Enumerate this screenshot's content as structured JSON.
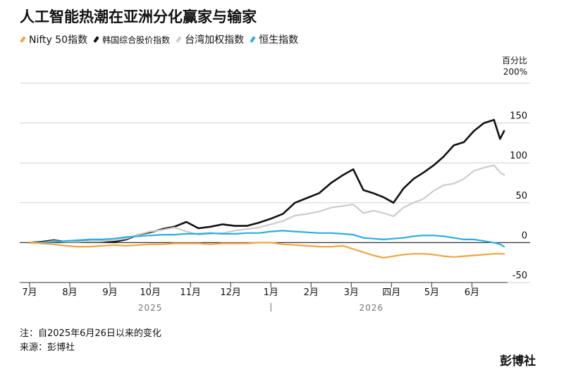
{
  "title": "人工智能热潮在亚洲分化赢家与输家",
  "legend": [
    {
      "label": "Nifty 50指数",
      "color": "#f0a540"
    },
    {
      "label": "韩国综合股价指数",
      "color": "#111111"
    },
    {
      "label": "台湾加权指数",
      "color": "#cccccc"
    },
    {
      "label": "恒生指数",
      "color": "#29aee0"
    }
  ],
  "unit_label": "百分比",
  "unit_top_tick": "200%",
  "footnote": "注：自2025年6月26日以来的变化",
  "source": "来源：彭博社",
  "brand": "彭博社",
  "chart_data": {
    "type": "line",
    "title": "人工智能热潮在亚洲分化赢家与输家",
    "ylabel": "百分比",
    "ylim": [
      -50,
      200
    ],
    "yticks": [
      150,
      100,
      50,
      0,
      -50
    ],
    "ytick_labels": [
      "150",
      "100",
      "50",
      "0",
      "-50"
    ],
    "x_tick_labels": [
      "7月",
      "8月",
      "9月",
      "10月",
      "11月",
      "12月",
      "1月",
      "2月",
      "3月",
      "四月",
      "5月",
      "6月"
    ],
    "x_tick_months": [
      0,
      1,
      2,
      3,
      4,
      5,
      6,
      7,
      8,
      9,
      10,
      11
    ],
    "year_labels": [
      {
        "label": "2025",
        "month": 3
      },
      {
        "label": "2026",
        "month": 8.5
      }
    ],
    "grid": true,
    "legend_position": "top-left",
    "series": [
      {
        "name": "韩国综合股价指数",
        "color": "#111111",
        "x": [
          0,
          0.3,
          0.6,
          0.9,
          1.2,
          1.5,
          1.8,
          2.1,
          2.4,
          2.7,
          3.0,
          3.3,
          3.6,
          3.9,
          4.2,
          4.5,
          4.8,
          5.1,
          5.4,
          5.7,
          6.0,
          6.3,
          6.6,
          6.9,
          7.2,
          7.5,
          7.8,
          8.05,
          8.3,
          8.55,
          8.8,
          9.05,
          9.3,
          9.55,
          9.8,
          10.05,
          10.3,
          10.55,
          10.8,
          11.05,
          11.3,
          11.55,
          11.7,
          11.8
        ],
        "y": [
          0,
          1,
          3,
          1,
          2,
          3,
          2,
          1,
          4,
          10,
          13,
          17,
          20,
          26,
          18,
          20,
          23,
          21,
          21,
          25,
          30,
          36,
          50,
          56,
          62,
          75,
          85,
          92,
          66,
          62,
          57,
          50,
          68,
          80,
          88,
          97,
          108,
          122,
          126,
          140,
          150,
          154,
          130,
          140
        ]
      },
      {
        "name": "台湾加权指数",
        "color": "#cccccc",
        "x": [
          0,
          0.3,
          0.6,
          0.9,
          1.2,
          1.5,
          1.8,
          2.1,
          2.4,
          2.7,
          3.0,
          3.3,
          3.6,
          3.9,
          4.2,
          4.5,
          4.8,
          5.1,
          5.4,
          5.7,
          6.0,
          6.3,
          6.6,
          6.9,
          7.2,
          7.5,
          7.8,
          8.05,
          8.3,
          8.55,
          8.8,
          9.05,
          9.3,
          9.55,
          9.8,
          10.05,
          10.3,
          10.55,
          10.8,
          11.05,
          11.3,
          11.55,
          11.7,
          11.8
        ],
        "y": [
          0,
          0,
          2,
          1,
          1,
          2,
          2,
          3,
          5,
          10,
          14,
          16,
          19,
          14,
          10,
          11,
          12,
          15,
          17,
          19,
          23,
          27,
          34,
          36,
          39,
          44,
          46,
          48,
          37,
          40,
          37,
          33,
          44,
          50,
          55,
          65,
          72,
          74,
          80,
          90,
          94,
          97,
          88,
          85
        ]
      },
      {
        "name": "恒生指数",
        "color": "#29aee0",
        "x": [
          0,
          0.3,
          0.6,
          0.9,
          1.2,
          1.5,
          1.8,
          2.1,
          2.4,
          2.7,
          3.0,
          3.3,
          3.6,
          3.9,
          4.2,
          4.5,
          4.8,
          5.1,
          5.4,
          5.7,
          6.0,
          6.3,
          6.6,
          6.9,
          7.2,
          7.5,
          7.8,
          8.05,
          8.3,
          8.55,
          8.8,
          9.05,
          9.3,
          9.55,
          9.8,
          10.05,
          10.3,
          10.55,
          10.8,
          11.05,
          11.3,
          11.55,
          11.7,
          11.8
        ],
        "y": [
          0,
          0,
          1,
          2,
          3,
          4,
          4,
          5,
          7,
          8,
          9,
          10,
          10,
          11,
          11,
          12,
          11,
          11,
          12,
          12,
          14,
          15,
          14,
          13,
          12,
          12,
          11,
          10,
          6,
          5,
          4,
          5,
          6,
          8,
          9,
          9,
          8,
          6,
          4,
          4,
          2,
          0,
          -2,
          -5
        ]
      },
      {
        "name": "Nifty 50指数",
        "color": "#f0a540",
        "x": [
          0,
          0.3,
          0.6,
          0.9,
          1.2,
          1.5,
          1.8,
          2.1,
          2.4,
          2.7,
          3.0,
          3.3,
          3.6,
          3.9,
          4.2,
          4.5,
          4.8,
          5.1,
          5.4,
          5.7,
          6.0,
          6.3,
          6.6,
          6.9,
          7.2,
          7.5,
          7.8,
          8.05,
          8.3,
          8.55,
          8.8,
          9.05,
          9.3,
          9.55,
          9.8,
          10.05,
          10.3,
          10.55,
          10.8,
          11.05,
          11.3,
          11.55,
          11.7,
          11.8
        ],
        "y": [
          0,
          -1,
          -2,
          -4,
          -5,
          -5,
          -4,
          -3,
          -4,
          -3,
          -2,
          -2,
          -1,
          -1,
          -1,
          -2,
          -1,
          -1,
          -1,
          0,
          0,
          -2,
          -3,
          -4,
          -5,
          -5,
          -4,
          -8,
          -12,
          -16,
          -19,
          -17,
          -15,
          -14,
          -14,
          -15,
          -17,
          -18,
          -17,
          -16,
          -15,
          -14,
          -14,
          -14
        ]
      }
    ]
  }
}
